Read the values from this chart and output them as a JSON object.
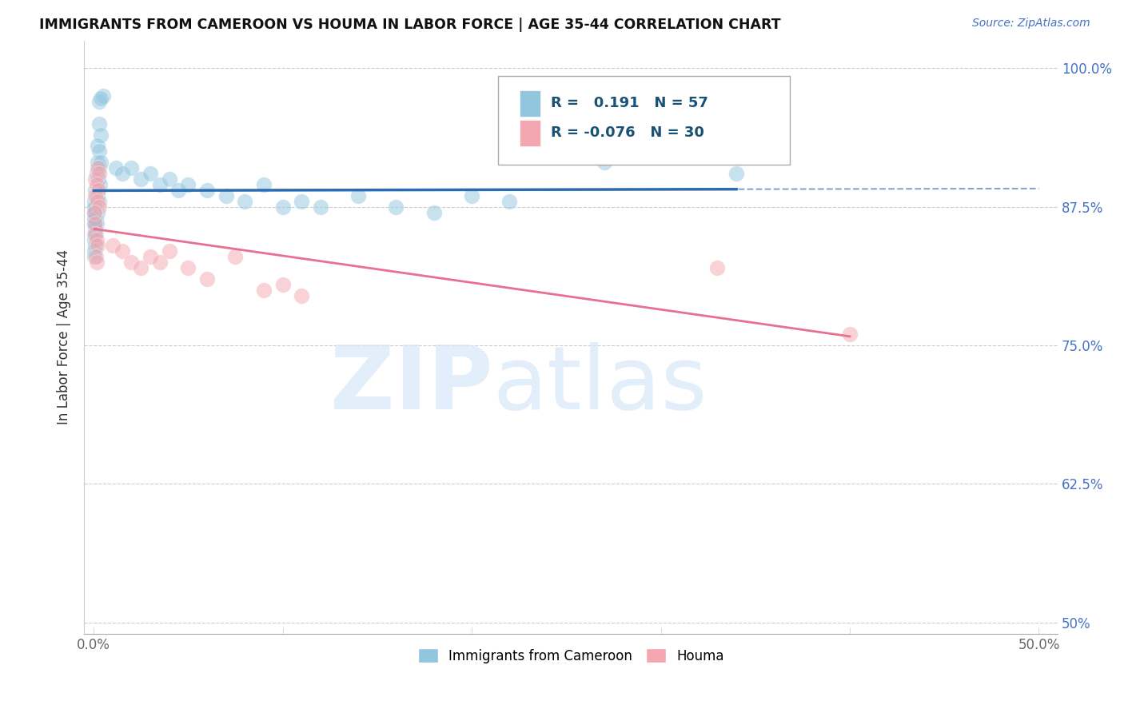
{
  "title": "IMMIGRANTS FROM CAMEROON VS HOUMA IN LABOR FORCE | AGE 35-44 CORRELATION CHART",
  "source": "Source: ZipAtlas.com",
  "ylabel": "In Labor Force | Age 35-44",
  "xlim": [
    -0.5,
    51.0
  ],
  "ylim": [
    49.0,
    102.5
  ],
  "xtick_pos": [
    0,
    10,
    20,
    30,
    40,
    50
  ],
  "xtick_labels": [
    "0.0%",
    "",
    "",
    "",
    "",
    "50.0%"
  ],
  "ytick_pos": [
    50,
    62.5,
    75,
    87.5,
    100
  ],
  "ytick_labels_right": [
    "50%",
    "62.5%",
    "75.0%",
    "87.5%",
    "100.0%"
  ],
  "legend_R_blue": "0.191",
  "legend_N_blue": "57",
  "legend_R_pink": "-0.076",
  "legend_N_pink": "30",
  "blue_color": "#92c5de",
  "pink_color": "#f4a7b0",
  "blue_line_color": "#2b6cb0",
  "pink_line_color": "#e87090",
  "blue_scatter": [
    [
      0.3,
      97.0
    ],
    [
      0.5,
      97.5
    ],
    [
      0.4,
      97.3
    ],
    [
      0.3,
      95.0
    ],
    [
      0.4,
      94.0
    ],
    [
      0.2,
      93.0
    ],
    [
      0.3,
      92.5
    ],
    [
      0.2,
      91.5
    ],
    [
      0.3,
      91.0
    ],
    [
      0.4,
      91.5
    ],
    [
      0.15,
      90.5
    ],
    [
      0.25,
      90.0
    ],
    [
      0.35,
      89.5
    ],
    [
      0.1,
      89.0
    ],
    [
      0.2,
      88.5
    ],
    [
      0.3,
      88.0
    ],
    [
      0.05,
      88.0
    ],
    [
      0.1,
      87.5
    ],
    [
      0.2,
      87.0
    ],
    [
      0.08,
      87.0
    ],
    [
      0.12,
      86.5
    ],
    [
      0.18,
      86.0
    ],
    [
      0.05,
      86.0
    ],
    [
      0.08,
      85.5
    ],
    [
      0.12,
      85.0
    ],
    [
      0.03,
      85.0
    ],
    [
      0.06,
      84.5
    ],
    [
      0.09,
      84.0
    ],
    [
      0.02,
      83.5
    ],
    [
      0.05,
      83.0
    ],
    [
      0.02,
      87.5
    ],
    [
      0.04,
      87.0
    ],
    [
      0.02,
      86.0
    ],
    [
      0.03,
      86.5
    ],
    [
      1.2,
      91.0
    ],
    [
      1.5,
      90.5
    ],
    [
      2.0,
      91.0
    ],
    [
      2.5,
      90.0
    ],
    [
      3.0,
      90.5
    ],
    [
      3.5,
      89.5
    ],
    [
      4.0,
      90.0
    ],
    [
      4.5,
      89.0
    ],
    [
      5.0,
      89.5
    ],
    [
      6.0,
      89.0
    ],
    [
      7.0,
      88.5
    ],
    [
      8.0,
      88.0
    ],
    [
      9.0,
      89.5
    ],
    [
      10.0,
      87.5
    ],
    [
      11.0,
      88.0
    ],
    [
      12.0,
      87.5
    ],
    [
      14.0,
      88.5
    ],
    [
      16.0,
      87.5
    ],
    [
      18.0,
      87.0
    ],
    [
      20.0,
      88.5
    ],
    [
      22.0,
      88.0
    ],
    [
      27.0,
      91.5
    ],
    [
      34.0,
      90.5
    ]
  ],
  "pink_scatter": [
    [
      0.1,
      90.0
    ],
    [
      0.2,
      91.0
    ],
    [
      0.3,
      90.5
    ],
    [
      0.15,
      89.5
    ],
    [
      0.25,
      89.0
    ],
    [
      0.1,
      88.5
    ],
    [
      0.2,
      88.0
    ],
    [
      0.3,
      87.5
    ],
    [
      0.05,
      87.0
    ],
    [
      0.08,
      86.0
    ],
    [
      0.1,
      85.0
    ],
    [
      0.15,
      84.5
    ],
    [
      0.2,
      84.0
    ],
    [
      0.12,
      83.0
    ],
    [
      0.18,
      82.5
    ],
    [
      1.0,
      84.0
    ],
    [
      1.5,
      83.5
    ],
    [
      2.0,
      82.5
    ],
    [
      2.5,
      82.0
    ],
    [
      3.0,
      83.0
    ],
    [
      3.5,
      82.5
    ],
    [
      4.0,
      83.5
    ],
    [
      5.0,
      82.0
    ],
    [
      6.0,
      81.0
    ],
    [
      7.5,
      83.0
    ],
    [
      9.0,
      80.0
    ],
    [
      10.0,
      80.5
    ],
    [
      11.0,
      79.5
    ],
    [
      33.0,
      82.0
    ],
    [
      40.0,
      76.0
    ]
  ],
  "blue_regline_x": [
    0.0,
    27.0
  ],
  "blue_regline_y": [
    87.2,
    91.0
  ],
  "blue_dashline_x": [
    0.0,
    50.0
  ],
  "blue_dashline_y": [
    87.2,
    94.0
  ],
  "pink_regline_x": [
    0.0,
    40.0
  ],
  "pink_regline_y": [
    81.5,
    79.0
  ]
}
